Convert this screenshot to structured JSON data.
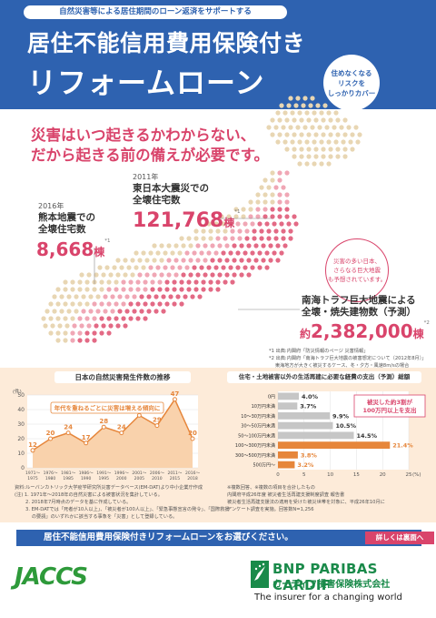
{
  "header": {
    "tagline": "自然災害等による居住期間のローン返済をサポートする",
    "title_line1": "居住不能信用費用保険付き",
    "title_line2": "リフォームローン",
    "bubble": [
      "住めなくなる",
      "リスクを",
      "しっかりカバー"
    ]
  },
  "headline": [
    "災害はいつ起きるかわからない、",
    "だから起きる前の備えが必要です。"
  ],
  "stats": {
    "kumamoto": {
      "year": "2016年",
      "label1": "熊本地震での",
      "label2": "全壊住宅数",
      "value": "8,668",
      "unit": "棟",
      "note": "*1"
    },
    "tohoku": {
      "year": "2011年",
      "label1": "東日本大震災での",
      "label2": "全壊住宅数",
      "value": "121,768",
      "unit": "棟",
      "note": "*1"
    },
    "nankai": {
      "label1": "南海トラフ巨大地震による",
      "label2": "全壊・焼失建物数（予測）",
      "prefix": "約",
      "value": "2,382,000",
      "unit": "棟",
      "note": "*2"
    }
  },
  "hazard_bubble": [
    "災害の多い日本、",
    "さらなる巨大地震",
    "も予想されています。"
  ],
  "sources": [
    "*1 出典:内閣府「防災情報のページ 災害情報」",
    "*2 出典:内閣府「南海トラフ巨大地震の被害想定について（2012年8月）」",
    "　 東海地方が大きく被災するケース、冬・夕方・風速8m/sの場合"
  ],
  "line_panel": {
    "title": "日本の自然災害発生件数の推移",
    "annotation": "年代を重ねるごとに災害は増える傾向に",
    "notes": [
      "資料:ルーバンカトリック大学疫学研究所災害データベース(EM-DAT)より中小企業庁作成",
      "(注) 1. 1971年〜2018年の自然災害による被害状況を集計している。",
      "　　 2. 2018年7月時点のデータを基に作成している。",
      "　　 3. EM-DATでは「死者が10人以上」、「被災者が100人以上」、「緊急事態宣言の発令」、「国際救援",
      "　　 　 の要請」のいずれかに該当する事象を「災害」として登録している。"
    ]
  },
  "bar_panel": {
    "title": "住宅・土地被害以外の生活再建に必要な経費の支出（予測）総額",
    "annotation": [
      "被災した約3割が",
      "100万円以上を支出"
    ],
    "notes": [
      "※複数回答、※複数の項目を合計したもの",
      "内閣府平成26年度 被災者生活再建支援制度調査 報告書",
      "被災者生活再建支援法の適用を受けた被災世帯を対象に、平成26年10月に",
      "アンケート調査を実施。回答数N=1,256"
    ]
  },
  "chart_data": [
    {
      "type": "line",
      "title": "日本の自然災害発生件数の推移",
      "categories": [
        "1971〜1975",
        "1976〜1980",
        "1981〜1985",
        "1986〜1990",
        "1991〜1995",
        "1996〜2000",
        "2001〜2005",
        "2006〜2010",
        "2011〜2015",
        "2016〜2018"
      ],
      "values": [
        12,
        20,
        24,
        17,
        28,
        24,
        36,
        29,
        47,
        20
      ],
      "ylim": [
        0,
        50
      ],
      "yticks": [
        0,
        10,
        20,
        30,
        40,
        50
      ],
      "ylabel": "(件)",
      "colors": {
        "line": "#e6863b",
        "area": "#f9d2ac"
      }
    },
    {
      "type": "bar",
      "title": "住宅・土地被害以外の生活再建に必要な経費の支出（予測）総額",
      "categories": [
        "0円",
        "10万円未満",
        "10〜30万円未満",
        "30〜50万円未満",
        "50〜100万円未満",
        "100〜300万円未満",
        "300〜500万円未満",
        "500万円〜"
      ],
      "values": [
        4.0,
        3.7,
        9.9,
        10.5,
        14.5,
        21.4,
        3.8,
        3.2
      ],
      "value_labels": [
        "4.0%",
        "3.7%",
        "9.9%",
        "10.5%",
        "14.5%",
        "21.4%",
        "3.8%",
        "3.2%"
      ],
      "highlight_from_index": 5,
      "xlim": [
        0,
        25
      ],
      "xticks": [
        0,
        5,
        10,
        15,
        20,
        25
      ],
      "xlabel": "(%)",
      "colors": {
        "normal": "#c6c6c6",
        "highlight": "#e6863b"
      }
    }
  ],
  "cta": {
    "text": "居住不能信用費用保険付きリフォームローンをお選びください。",
    "more": "詳しくは裏面へ"
  },
  "footer": {
    "jaccs": "JACCS",
    "bnp_name": "BNP PARIBAS CARDIF",
    "bnp_sub": "カーディフ損害保険株式会社",
    "bnp_tag": "The insurer for a changing world"
  }
}
